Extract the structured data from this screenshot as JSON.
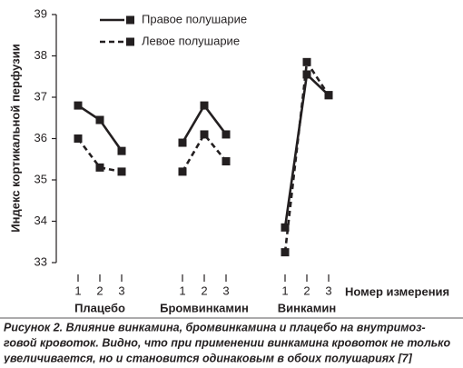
{
  "chart_data": {
    "type": "line",
    "ylabel": "Индекс кортикальной перфузии",
    "xlabel": "Номер измерения",
    "ylim": [
      33,
      39
    ],
    "yticks": [
      33,
      34,
      35,
      36,
      37,
      38,
      39
    ],
    "groups": [
      {
        "label": "Плацебо",
        "x": [
          1,
          2,
          3
        ]
      },
      {
        "label": "Бромвинкамин",
        "x": [
          1,
          2,
          3
        ]
      },
      {
        "label": "Винкамин",
        "x": [
          1,
          2,
          3
        ]
      }
    ],
    "series": [
      {
        "name": "Правое полушарие",
        "color": "#231f20",
        "dashed": false,
        "values": [
          [
            36.8,
            36.45,
            35.7
          ],
          [
            35.9,
            36.8,
            36.1
          ],
          [
            33.85,
            37.55,
            37.05
          ]
        ]
      },
      {
        "name": "Левое полушарие",
        "color": "#231f20",
        "dashed": true,
        "values": [
          [
            36.0,
            35.3,
            35.2
          ],
          [
            35.2,
            36.1,
            35.45
          ],
          [
            33.25,
            37.85,
            37.05
          ]
        ]
      }
    ]
  },
  "caption": [
    "Рисунок 2. Влияние винкамина, бромвинкамина и плацебо на внутримоз-",
    "говой кровоток. Видно, что при применении винкамина кровоток не только",
    "увеличивается, но и становится одинаковым в обоих полушариях [7]"
  ]
}
